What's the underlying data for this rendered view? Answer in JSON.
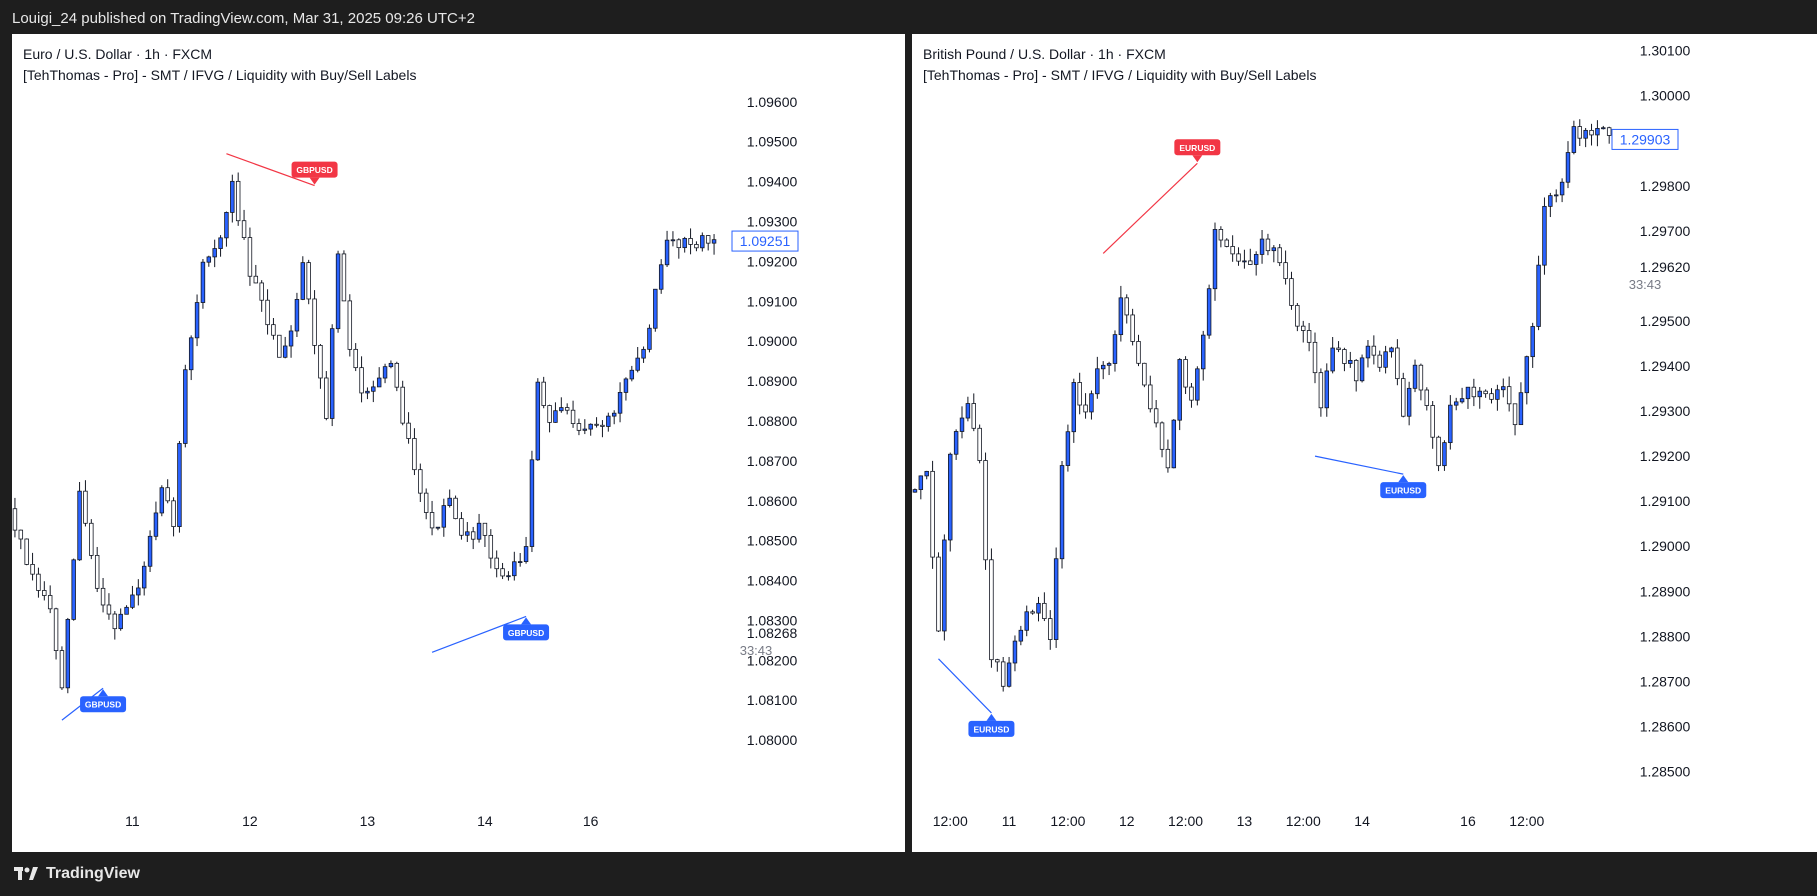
{
  "header": {
    "published_line": "Louigi_24 published on TradingView.com, Mar 31, 2025 09:26 UTC+2"
  },
  "footer": {
    "brand": "TradingView",
    "logo_icon": "tradingview-logo-icon"
  },
  "colors": {
    "up": "#2962ff",
    "down": "#ffffff",
    "outline": "#131722",
    "bull_line": "#2962ff",
    "bear_line": "#f23645",
    "bull_label": "#2962ff",
    "bear_label": "#f23645"
  },
  "chart_data": [
    {
      "type": "candlestick",
      "title": "Euro / U.S. Dollar · 1h · FXCM",
      "indicator": "[TehThomas - Pro] - SMT / IFVG / Liquidity with Buy/Sell Labels",
      "ylim": [
        1.0791,
        1.09745
      ],
      "y_ticks": [
        "1.09600",
        "1.09500",
        "1.09400",
        "1.09300",
        "1.09200",
        "1.09100",
        "1.09000",
        "1.08900",
        "1.08800",
        "1.08700",
        "1.08600",
        "1.08500",
        "1.08400",
        "1.08300",
        "1.08200",
        "1.08100",
        "1.08000"
      ],
      "price_tag": "1.09251",
      "price_tag_value": 1.09251,
      "countdown_price": "1.08268",
      "countdown_price_value": 1.08268,
      "countdown": "33:43",
      "bar_count": 120,
      "x_ticks": [
        {
          "label": "11",
          "bar": 20
        },
        {
          "label": "12",
          "bar": 40
        },
        {
          "label": "13",
          "bar": 60
        },
        {
          "label": "14",
          "bar": 80
        },
        {
          "label": "16",
          "bar": 98
        }
      ],
      "anchors": [
        [
          0,
          1.0858
        ],
        [
          4,
          1.084
        ],
        [
          7,
          1.0833
        ],
        [
          9,
          1.0812
        ],
        [
          12,
          1.0862
        ],
        [
          15,
          1.0838
        ],
        [
          18,
          1.0829
        ],
        [
          22,
          1.0838
        ],
        [
          26,
          1.0862
        ],
        [
          28,
          1.0855
        ],
        [
          30,
          1.0892
        ],
        [
          33,
          1.092
        ],
        [
          36,
          1.0925
        ],
        [
          38,
          1.0939
        ],
        [
          41,
          1.0917
        ],
        [
          44,
          1.0905
        ],
        [
          46,
          1.0897
        ],
        [
          48,
          1.0903
        ],
        [
          50,
          1.092
        ],
        [
          52,
          1.09
        ],
        [
          54,
          1.0882
        ],
        [
          56,
          1.0922
        ],
        [
          58,
          1.0897
        ],
        [
          60,
          1.0888
        ],
        [
          65,
          1.0893
        ],
        [
          68,
          1.0875
        ],
        [
          72,
          1.0852
        ],
        [
          75,
          1.086
        ],
        [
          77,
          1.085
        ],
        [
          80,
          1.0853
        ],
        [
          84,
          1.084
        ],
        [
          88,
          1.0848
        ],
        [
          90,
          1.089
        ],
        [
          92,
          1.0879
        ],
        [
          94,
          1.0883
        ],
        [
          98,
          1.0878
        ],
        [
          102,
          1.088
        ],
        [
          108,
          1.0898
        ],
        [
          112,
          1.0925
        ],
        [
          115,
          1.0925
        ]
      ],
      "smt_lines": [
        {
          "label": "GBPUSD",
          "kind": "bull",
          "from": [
            8,
            1.0805
          ],
          "to": [
            15,
            1.0813
          ]
        },
        {
          "label": "GBPUSD",
          "kind": "bear",
          "from": [
            36,
            1.0947
          ],
          "to": [
            51,
            1.0939
          ]
        },
        {
          "label": "GBPUSD",
          "kind": "bull",
          "from": [
            71,
            1.0822
          ],
          "to": [
            87,
            1.0831
          ]
        }
      ]
    },
    {
      "type": "candlestick",
      "title": "British Pound / U.S. Dollar · 1h · FXCM",
      "indicator": "[TehThomas - Pro] - SMT / IFVG / Liquidity with Buy/Sell Labels",
      "ylim": [
        1.2847,
        1.30137
      ],
      "y_ticks": [
        "1.30100",
        "1.30000",
        "1.29800",
        "1.29700",
        "1.29620",
        "1.29500",
        "1.29400",
        "1.29300",
        "1.29200",
        "1.29100",
        "1.29000",
        "1.28900",
        "1.28800",
        "1.28700",
        "1.28600",
        "1.28500"
      ],
      "price_tag": "1.29903",
      "price_tag_value": 1.29903,
      "countdown": "33:43",
      "bar_count": 120,
      "x_ticks": [
        {
          "label": "12:00",
          "bar": 6
        },
        {
          "label": "11",
          "bar": 16
        },
        {
          "label": "12:00",
          "bar": 26
        },
        {
          "label": "12",
          "bar": 36
        },
        {
          "label": "12:00",
          "bar": 46
        },
        {
          "label": "13",
          "bar": 56
        },
        {
          "label": "12:00",
          "bar": 66
        },
        {
          "label": "14",
          "bar": 76
        },
        {
          "label": "16",
          "bar": 94
        },
        {
          "label": "12:00",
          "bar": 104
        }
      ],
      "anchors": [
        [
          0,
          1.2912
        ],
        [
          3,
          1.2916
        ],
        [
          5,
          1.288
        ],
        [
          7,
          1.292
        ],
        [
          10,
          1.2932
        ],
        [
          12,
          1.292
        ],
        [
          14,
          1.2876
        ],
        [
          16,
          1.287
        ],
        [
          18,
          1.2878
        ],
        [
          20,
          1.2884
        ],
        [
          22,
          1.2888
        ],
        [
          24,
          1.2878
        ],
        [
          26,
          1.2918
        ],
        [
          28,
          1.2935
        ],
        [
          30,
          1.293
        ],
        [
          32,
          1.294
        ],
        [
          34,
          1.294
        ],
        [
          36,
          1.2955
        ],
        [
          38,
          1.2945
        ],
        [
          40,
          1.2937
        ],
        [
          42,
          1.2927
        ],
        [
          44,
          1.2918
        ],
        [
          46,
          1.294
        ],
        [
          48,
          1.2932
        ],
        [
          50,
          1.2946
        ],
        [
          52,
          1.297
        ],
        [
          54,
          1.2968
        ],
        [
          57,
          1.2962
        ],
        [
          60,
          1.2968
        ],
        [
          62,
          1.2965
        ],
        [
          64,
          1.2958
        ],
        [
          66,
          1.295
        ],
        [
          68,
          1.2944
        ],
        [
          70,
          1.2932
        ],
        [
          72,
          1.2945
        ],
        [
          74,
          1.2942
        ],
        [
          76,
          1.2938
        ],
        [
          78,
          1.2945
        ],
        [
          80,
          1.294
        ],
        [
          82,
          1.2944
        ],
        [
          84,
          1.293
        ],
        [
          86,
          1.294
        ],
        [
          88,
          1.2932
        ],
        [
          90,
          1.2918
        ],
        [
          92,
          1.293
        ],
        [
          95,
          1.2935
        ],
        [
          98,
          1.2933
        ],
        [
          101,
          1.2936
        ],
        [
          103,
          1.2928
        ],
        [
          106,
          1.2948
        ],
        [
          108,
          1.2975
        ],
        [
          111,
          1.298
        ],
        [
          113,
          1.2992
        ]
      ],
      "smt_lines": [
        {
          "label": "EURUSD",
          "kind": "bull",
          "from": [
            4,
            1.2875
          ],
          "to": [
            13,
            1.2863
          ]
        },
        {
          "label": "EURUSD",
          "kind": "bear",
          "from": [
            32,
            1.2965
          ],
          "to": [
            48,
            1.2985
          ]
        },
        {
          "label": "EURUSD",
          "kind": "bull",
          "from": [
            68,
            1.292
          ],
          "to": [
            83,
            1.2916
          ]
        }
      ]
    }
  ]
}
